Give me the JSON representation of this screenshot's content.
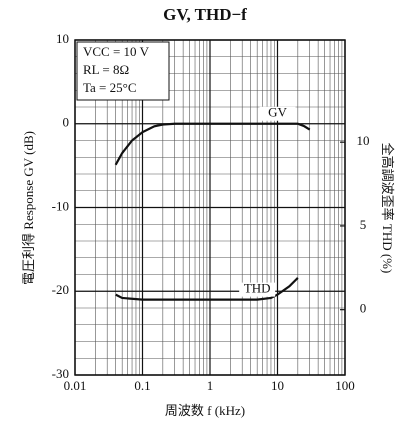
{
  "chart_data": {
    "type": "line",
    "title": "GV, THD−f",
    "xlabel": "周波数 f (kHz)",
    "ylabel": "電圧利得 Response GV (dB)",
    "y2label": "全高調波歪率 THD (%)",
    "xscale": "log",
    "xlim": [
      0.01,
      100
    ],
    "xticks": [
      0.01,
      0.1,
      1,
      10,
      100
    ],
    "ylim": [
      -30,
      10
    ],
    "yticks": [
      -30,
      -20,
      -10,
      0,
      10
    ],
    "y2lim": [
      -3.9,
      16.1
    ],
    "y2ticks": [
      0,
      5,
      10
    ],
    "grid": true,
    "annotations": [
      "VCC = 10 V",
      "RL = 8Ω",
      "Ta = 25°C"
    ],
    "series": [
      {
        "name": "GV",
        "color": "#111111",
        "x": [
          0.04,
          0.05,
          0.07,
          0.1,
          0.15,
          0.2,
          0.3,
          1,
          10,
          20,
          25,
          30
        ],
        "values": [
          -4.9,
          -3.5,
          -2,
          -1,
          -0.3,
          -0.1,
          0,
          0,
          0,
          0,
          -0.3,
          -0.7
        ]
      },
      {
        "name": "THD",
        "color": "#111111",
        "axis": "y2",
        "x": [
          0.04,
          0.05,
          0.1,
          1,
          5,
          8,
          10,
          15,
          20
        ],
        "values": [
          0.9,
          0.7,
          0.6,
          0.6,
          0.6,
          0.7,
          0.9,
          1.4,
          1.9
        ]
      }
    ]
  }
}
